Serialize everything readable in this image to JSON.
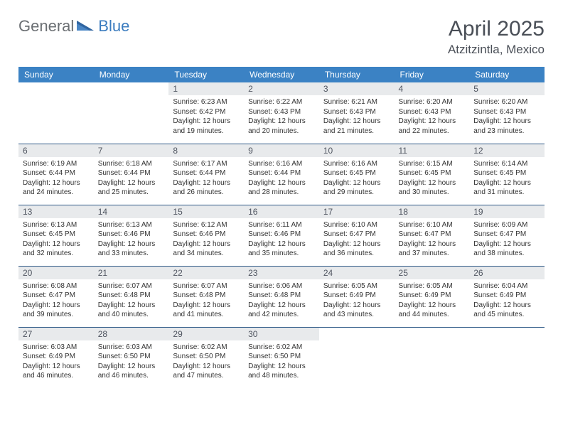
{
  "brand": {
    "part1": "General",
    "part2": "Blue"
  },
  "title": "April 2025",
  "location": "Atzitzintla, Mexico",
  "colors": {
    "header_bg": "#3b82c4",
    "header_text": "#ffffff",
    "daynum_bg": "#e8eaec",
    "daynum_text": "#4f5560",
    "rule": "#2f5a87",
    "brand_gray": "#6b6f73",
    "brand_blue": "#3b7cbf",
    "title_color": "#4a4f57",
    "body_text": "#333333",
    "page_bg": "#ffffff"
  },
  "typography": {
    "title_fontsize": 30,
    "location_fontsize": 17,
    "weekday_fontsize": 12,
    "daynum_fontsize": 12,
    "body_fontsize": 10,
    "logo_fontsize": 22
  },
  "weekdays": [
    "Sunday",
    "Monday",
    "Tuesday",
    "Wednesday",
    "Thursday",
    "Friday",
    "Saturday"
  ],
  "weeks": [
    [
      null,
      null,
      {
        "n": "1",
        "sr": "Sunrise: 6:23 AM",
        "ss": "Sunset: 6:42 PM",
        "d1": "Daylight: 12 hours",
        "d2": "and 19 minutes."
      },
      {
        "n": "2",
        "sr": "Sunrise: 6:22 AM",
        "ss": "Sunset: 6:43 PM",
        "d1": "Daylight: 12 hours",
        "d2": "and 20 minutes."
      },
      {
        "n": "3",
        "sr": "Sunrise: 6:21 AM",
        "ss": "Sunset: 6:43 PM",
        "d1": "Daylight: 12 hours",
        "d2": "and 21 minutes."
      },
      {
        "n": "4",
        "sr": "Sunrise: 6:20 AM",
        "ss": "Sunset: 6:43 PM",
        "d1": "Daylight: 12 hours",
        "d2": "and 22 minutes."
      },
      {
        "n": "5",
        "sr": "Sunrise: 6:20 AM",
        "ss": "Sunset: 6:43 PM",
        "d1": "Daylight: 12 hours",
        "d2": "and 23 minutes."
      }
    ],
    [
      {
        "n": "6",
        "sr": "Sunrise: 6:19 AM",
        "ss": "Sunset: 6:44 PM",
        "d1": "Daylight: 12 hours",
        "d2": "and 24 minutes."
      },
      {
        "n": "7",
        "sr": "Sunrise: 6:18 AM",
        "ss": "Sunset: 6:44 PM",
        "d1": "Daylight: 12 hours",
        "d2": "and 25 minutes."
      },
      {
        "n": "8",
        "sr": "Sunrise: 6:17 AM",
        "ss": "Sunset: 6:44 PM",
        "d1": "Daylight: 12 hours",
        "d2": "and 26 minutes."
      },
      {
        "n": "9",
        "sr": "Sunrise: 6:16 AM",
        "ss": "Sunset: 6:44 PM",
        "d1": "Daylight: 12 hours",
        "d2": "and 28 minutes."
      },
      {
        "n": "10",
        "sr": "Sunrise: 6:16 AM",
        "ss": "Sunset: 6:45 PM",
        "d1": "Daylight: 12 hours",
        "d2": "and 29 minutes."
      },
      {
        "n": "11",
        "sr": "Sunrise: 6:15 AM",
        "ss": "Sunset: 6:45 PM",
        "d1": "Daylight: 12 hours",
        "d2": "and 30 minutes."
      },
      {
        "n": "12",
        "sr": "Sunrise: 6:14 AM",
        "ss": "Sunset: 6:45 PM",
        "d1": "Daylight: 12 hours",
        "d2": "and 31 minutes."
      }
    ],
    [
      {
        "n": "13",
        "sr": "Sunrise: 6:13 AM",
        "ss": "Sunset: 6:45 PM",
        "d1": "Daylight: 12 hours",
        "d2": "and 32 minutes."
      },
      {
        "n": "14",
        "sr": "Sunrise: 6:13 AM",
        "ss": "Sunset: 6:46 PM",
        "d1": "Daylight: 12 hours",
        "d2": "and 33 minutes."
      },
      {
        "n": "15",
        "sr": "Sunrise: 6:12 AM",
        "ss": "Sunset: 6:46 PM",
        "d1": "Daylight: 12 hours",
        "d2": "and 34 minutes."
      },
      {
        "n": "16",
        "sr": "Sunrise: 6:11 AM",
        "ss": "Sunset: 6:46 PM",
        "d1": "Daylight: 12 hours",
        "d2": "and 35 minutes."
      },
      {
        "n": "17",
        "sr": "Sunrise: 6:10 AM",
        "ss": "Sunset: 6:47 PM",
        "d1": "Daylight: 12 hours",
        "d2": "and 36 minutes."
      },
      {
        "n": "18",
        "sr": "Sunrise: 6:10 AM",
        "ss": "Sunset: 6:47 PM",
        "d1": "Daylight: 12 hours",
        "d2": "and 37 minutes."
      },
      {
        "n": "19",
        "sr": "Sunrise: 6:09 AM",
        "ss": "Sunset: 6:47 PM",
        "d1": "Daylight: 12 hours",
        "d2": "and 38 minutes."
      }
    ],
    [
      {
        "n": "20",
        "sr": "Sunrise: 6:08 AM",
        "ss": "Sunset: 6:47 PM",
        "d1": "Daylight: 12 hours",
        "d2": "and 39 minutes."
      },
      {
        "n": "21",
        "sr": "Sunrise: 6:07 AM",
        "ss": "Sunset: 6:48 PM",
        "d1": "Daylight: 12 hours",
        "d2": "and 40 minutes."
      },
      {
        "n": "22",
        "sr": "Sunrise: 6:07 AM",
        "ss": "Sunset: 6:48 PM",
        "d1": "Daylight: 12 hours",
        "d2": "and 41 minutes."
      },
      {
        "n": "23",
        "sr": "Sunrise: 6:06 AM",
        "ss": "Sunset: 6:48 PM",
        "d1": "Daylight: 12 hours",
        "d2": "and 42 minutes."
      },
      {
        "n": "24",
        "sr": "Sunrise: 6:05 AM",
        "ss": "Sunset: 6:49 PM",
        "d1": "Daylight: 12 hours",
        "d2": "and 43 minutes."
      },
      {
        "n": "25",
        "sr": "Sunrise: 6:05 AM",
        "ss": "Sunset: 6:49 PM",
        "d1": "Daylight: 12 hours",
        "d2": "and 44 minutes."
      },
      {
        "n": "26",
        "sr": "Sunrise: 6:04 AM",
        "ss": "Sunset: 6:49 PM",
        "d1": "Daylight: 12 hours",
        "d2": "and 45 minutes."
      }
    ],
    [
      {
        "n": "27",
        "sr": "Sunrise: 6:03 AM",
        "ss": "Sunset: 6:49 PM",
        "d1": "Daylight: 12 hours",
        "d2": "and 46 minutes."
      },
      {
        "n": "28",
        "sr": "Sunrise: 6:03 AM",
        "ss": "Sunset: 6:50 PM",
        "d1": "Daylight: 12 hours",
        "d2": "and 46 minutes."
      },
      {
        "n": "29",
        "sr": "Sunrise: 6:02 AM",
        "ss": "Sunset: 6:50 PM",
        "d1": "Daylight: 12 hours",
        "d2": "and 47 minutes."
      },
      {
        "n": "30",
        "sr": "Sunrise: 6:02 AM",
        "ss": "Sunset: 6:50 PM",
        "d1": "Daylight: 12 hours",
        "d2": "and 48 minutes."
      },
      null,
      null,
      null
    ]
  ]
}
